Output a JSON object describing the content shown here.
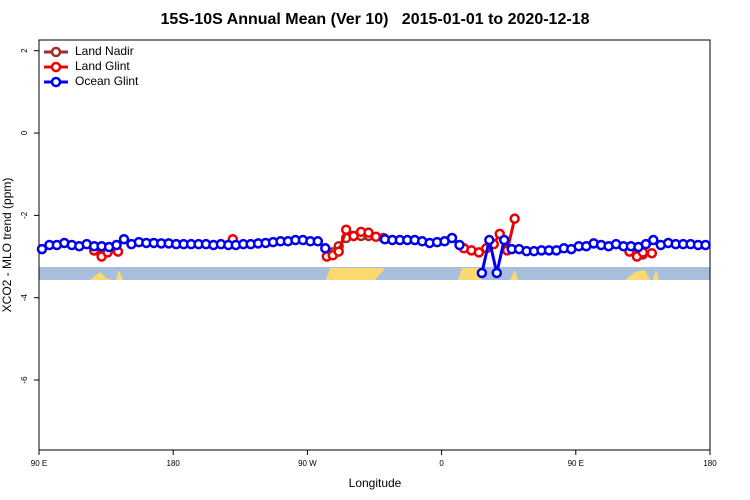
{
  "chart_data": {
    "type": "line",
    "title": "15S-10S Annual Mean (Ver 10)   2015-01-01 to 2020-12-18",
    "x_label": "Longitude",
    "y_label": "XCO2 - MLO trend (ppm)",
    "xlim": [
      90,
      540
    ],
    "ylim": [
      -7.7,
      2.26
    ],
    "xticks": [
      {
        "value": 90,
        "label": "90 E"
      },
      180,
      {
        "value": 270,
        "label": "90 W"
      },
      {
        "value": 360,
        "label": "0"
      },
      {
        "value": 450,
        "label": "90 E"
      },
      {
        "value": 540,
        "label": "180"
      }
    ],
    "yticks": [
      2,
      0,
      -2,
      -4,
      -6
    ],
    "legend": "top-left",
    "series": [
      {
        "name": "Land Nadir",
        "color": "#a52a2a",
        "x": [
          127,
          132,
          null,
          287,
          291,
          296,
          301,
          306,
          311,
          null,
          491,
          495
        ],
        "values": [
          -2.85,
          -2.95,
          null,
          -2.9,
          -2.75,
          -2.55,
          -2.5,
          -2.5,
          -2.5,
          null,
          -2.95,
          -2.95
        ]
      },
      {
        "name": "Land Glint",
        "color": "#ee0000",
        "x": [
          127,
          132,
          136,
          143,
          null,
          220,
          null,
          283,
          287,
          291,
          296,
          301,
          306,
          311,
          316,
          321,
          null,
          375,
          380,
          385,
          390,
          395,
          399,
          404,
          409,
          null,
          486,
          491,
          495,
          501
        ],
        "values": [
          -2.85,
          -3.0,
          -2.9,
          -2.88,
          null,
          -2.58,
          null,
          -3.0,
          -2.97,
          -2.88,
          -2.35,
          -2.5,
          -2.4,
          -2.42,
          -2.52,
          -2.55,
          null,
          -2.8,
          -2.85,
          -2.9,
          -2.8,
          -2.7,
          -2.45,
          -2.85,
          -2.08,
          null,
          -2.88,
          -3.0,
          -2.9,
          -2.92
        ]
      },
      {
        "name": "Ocean Glint",
        "color": "#0000ee",
        "x": [
          92,
          97,
          102,
          107,
          112,
          117,
          122,
          127,
          132,
          137,
          142,
          147,
          152,
          157,
          162,
          167,
          172,
          177,
          182,
          187,
          192,
          197,
          202,
          207,
          212,
          217,
          222,
          227,
          232,
          237,
          242,
          247,
          252,
          257,
          262,
          267,
          272,
          277,
          282,
          287,
          292,
          297,
          302,
          307,
          312,
          317,
          322,
          327,
          332,
          337,
          342,
          347,
          352,
          357,
          362,
          367,
          372,
          377,
          382,
          387,
          392,
          397,
          402,
          407,
          412,
          417,
          422,
          427,
          432,
          437,
          442,
          447,
          452,
          457,
          462,
          467,
          472,
          477,
          482,
          487,
          492,
          497,
          502,
          507,
          512,
          517,
          522,
          527,
          532,
          537
        ],
        "values": [
          -2.82,
          -2.72,
          -2.72,
          -2.67,
          -2.72,
          -2.75,
          -2.7,
          -2.75,
          -2.75,
          -2.77,
          -2.72,
          -2.58,
          -2.7,
          -2.65,
          -2.67,
          -2.67,
          -2.68,
          -2.68,
          -2.7,
          -2.7,
          -2.7,
          -2.7,
          -2.7,
          -2.72,
          -2.7,
          -2.72,
          -2.72,
          -2.7,
          -2.7,
          -2.68,
          -2.67,
          -2.65,
          -2.63,
          -2.63,
          -2.6,
          -2.6,
          -2.63,
          -2.63,
          -2.8,
          null,
          null,
          null,
          null,
          null,
          null,
          null,
          -2.58,
          -2.6,
          -2.6,
          -2.6,
          -2.6,
          -2.63,
          -2.67,
          -2.65,
          -2.63,
          -2.55,
          -2.72,
          null,
          null,
          -3.4,
          -2.6,
          -3.4,
          -2.6,
          -2.82,
          -2.82,
          -2.87,
          -2.87,
          -2.85,
          -2.85,
          -2.85,
          -2.8,
          -2.82,
          -2.75,
          -2.75,
          -2.68,
          -2.72,
          -2.75,
          -2.7,
          -2.75,
          -2.75,
          -2.77,
          -2.7,
          -2.6,
          -2.72,
          -2.67,
          -2.7,
          -2.7,
          -2.7,
          -2.72,
          -2.72
        ]
      }
    ]
  }
}
